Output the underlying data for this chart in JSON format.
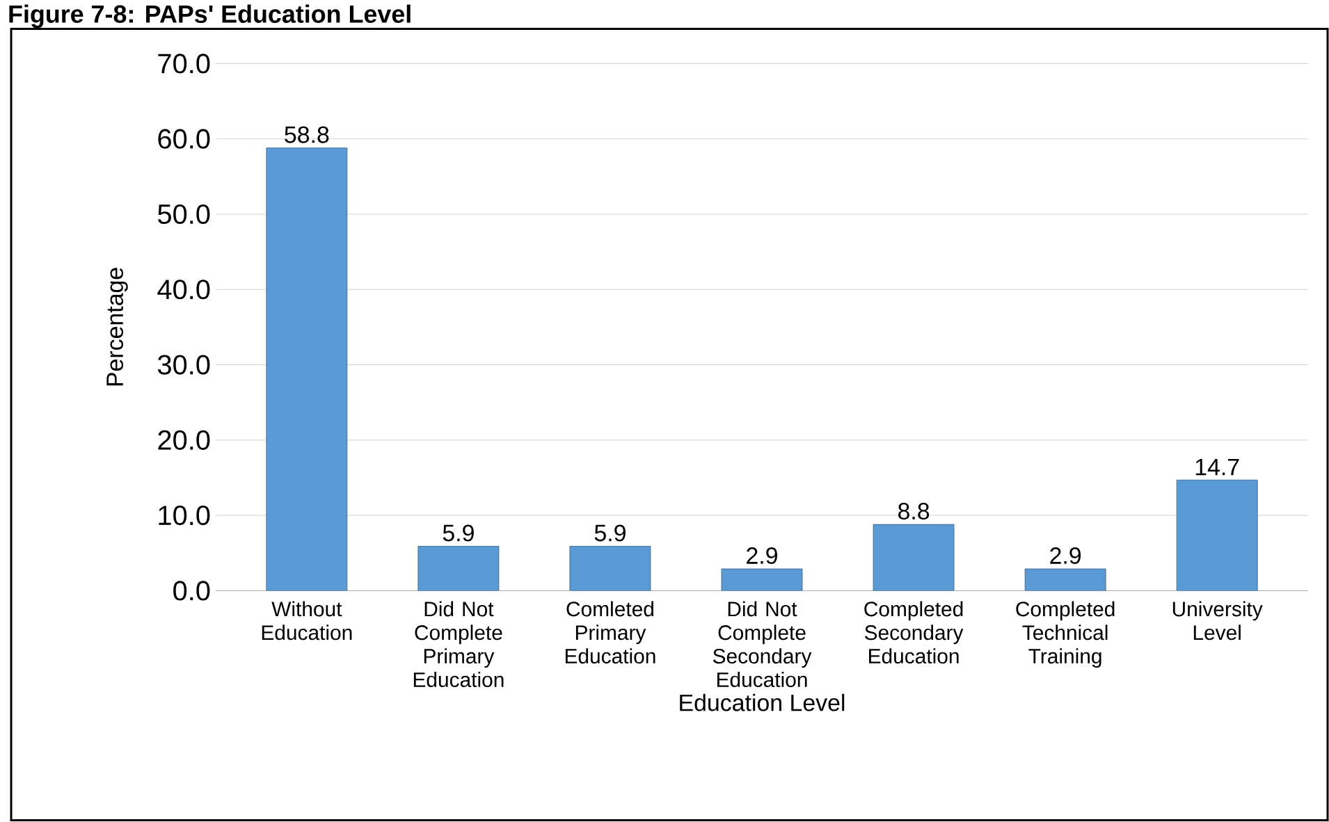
{
  "chart_data": {
    "type": "bar",
    "title": "Figure 7-8: PAPs' Education Level",
    "xlabel": "Education Level",
    "ylabel": "Percentage",
    "categories": [
      "Without Education",
      "Did Not Complete Primary Education",
      "Comleted Primary Education",
      "Did Not Complete Secondary Education",
      "Completed Secondary Education",
      "Completed Technical Training",
      "University Level"
    ],
    "values": [
      58.8,
      5.9,
      5.9,
      2.9,
      8.8,
      2.9,
      14.7
    ],
    "color": "#5b9bd5",
    "ylim": [
      0,
      70
    ],
    "yticks": [
      {
        "value": 0,
        "label": "0.0"
      },
      {
        "value": 10,
        "label": "10.0"
      },
      {
        "value": 20,
        "label": "20.0"
      },
      {
        "value": 30,
        "label": "30.0"
      },
      {
        "value": 40,
        "label": "40.0"
      },
      {
        "value": 50,
        "label": "50.0"
      },
      {
        "value": 60,
        "label": "60.0"
      },
      {
        "value": 70,
        "label": "70.0"
      }
    ],
    "grid": "y",
    "data_labels": true
  }
}
